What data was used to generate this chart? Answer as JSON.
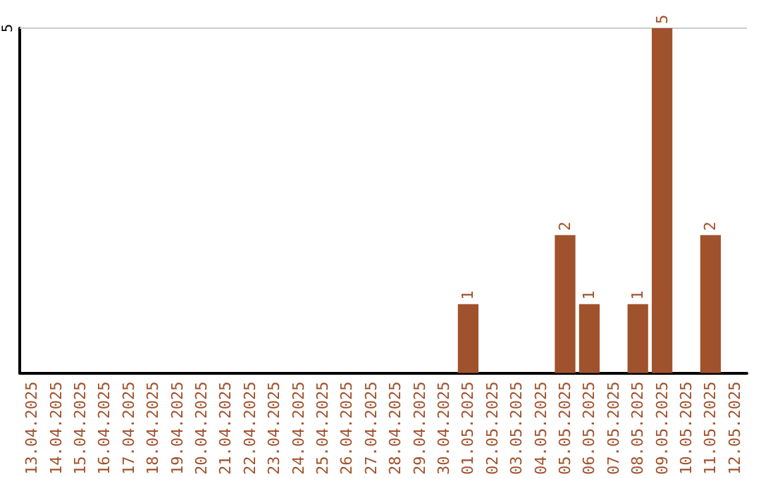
{
  "chart_data": {
    "type": "bar",
    "categories": [
      "13.04.2025",
      "14.04.2025",
      "15.04.2025",
      "16.04.2025",
      "17.04.2025",
      "18.04.2025",
      "19.04.2025",
      "20.04.2025",
      "21.04.2025",
      "22.04.2025",
      "23.04.2025",
      "24.04.2025",
      "25.04.2025",
      "26.04.2025",
      "27.04.2025",
      "28.04.2025",
      "29.04.2025",
      "30.04.2025",
      "01.05.2025",
      "02.05.2025",
      "03.05.2025",
      "04.05.2025",
      "05.05.2025",
      "06.05.2025",
      "07.05.2025",
      "08.05.2025",
      "09.05.2025",
      "10.05.2025",
      "11.05.2025",
      "12.05.2025"
    ],
    "values": [
      null,
      null,
      null,
      null,
      null,
      null,
      null,
      null,
      null,
      null,
      null,
      null,
      null,
      null,
      null,
      null,
      null,
      null,
      1,
      null,
      null,
      null,
      2,
      1,
      null,
      1,
      5,
      null,
      2,
      null
    ],
    "value_labels": [
      null,
      null,
      null,
      null,
      null,
      null,
      null,
      null,
      null,
      null,
      null,
      null,
      null,
      null,
      null,
      null,
      null,
      null,
      "1",
      null,
      null,
      null,
      "2",
      "1",
      null,
      "1",
      "5",
      null,
      "2",
      null
    ],
    "color": "#a0522d",
    "ylim": [
      0,
      5
    ],
    "annotations": [
      "5"
    ]
  }
}
